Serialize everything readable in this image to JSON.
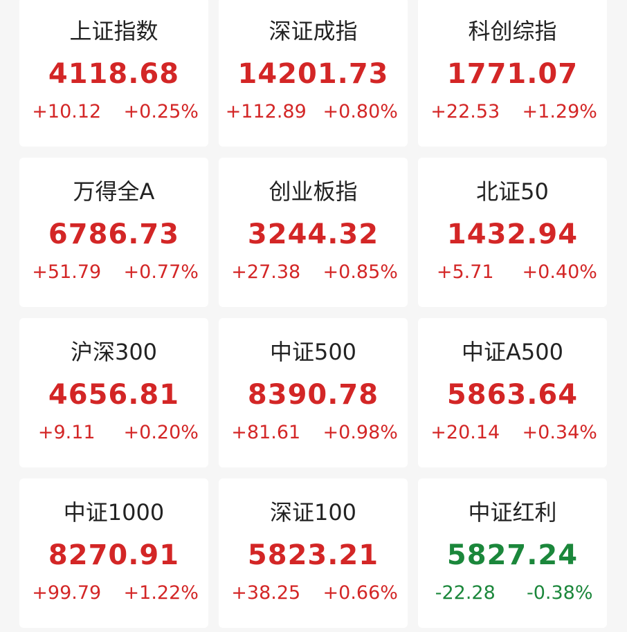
{
  "colors": {
    "up": "#d32626",
    "down": "#1b873b"
  },
  "indices": [
    {
      "name": "上证指数",
      "price": "4118.68",
      "change": "+10.12",
      "percent": "+0.25%",
      "direction": "up"
    },
    {
      "name": "深证成指",
      "price": "14201.73",
      "change": "+112.89",
      "percent": "+0.80%",
      "direction": "up"
    },
    {
      "name": "科创综指",
      "price": "1771.07",
      "change": "+22.53",
      "percent": "+1.29%",
      "direction": "up"
    },
    {
      "name": "万得全A",
      "price": "6786.73",
      "change": "+51.79",
      "percent": "+0.77%",
      "direction": "up"
    },
    {
      "name": "创业板指",
      "price": "3244.32",
      "change": "+27.38",
      "percent": "+0.85%",
      "direction": "up"
    },
    {
      "name": "北证50",
      "price": "1432.94",
      "change": "+5.71",
      "percent": "+0.40%",
      "direction": "up"
    },
    {
      "name": "沪深300",
      "price": "4656.81",
      "change": "+9.11",
      "percent": "+0.20%",
      "direction": "up"
    },
    {
      "name": "中证500",
      "price": "8390.78",
      "change": "+81.61",
      "percent": "+0.98%",
      "direction": "up"
    },
    {
      "name": "中证A500",
      "price": "5863.64",
      "change": "+20.14",
      "percent": "+0.34%",
      "direction": "up"
    },
    {
      "name": "中证1000",
      "price": "8270.91",
      "change": "+99.79",
      "percent": "+1.22%",
      "direction": "up"
    },
    {
      "name": "深证100",
      "price": "5823.21",
      "change": "+38.25",
      "percent": "+0.66%",
      "direction": "up"
    },
    {
      "name": "中证红利",
      "price": "5827.24",
      "change": "-22.28",
      "percent": "-0.38%",
      "direction": "down"
    }
  ]
}
